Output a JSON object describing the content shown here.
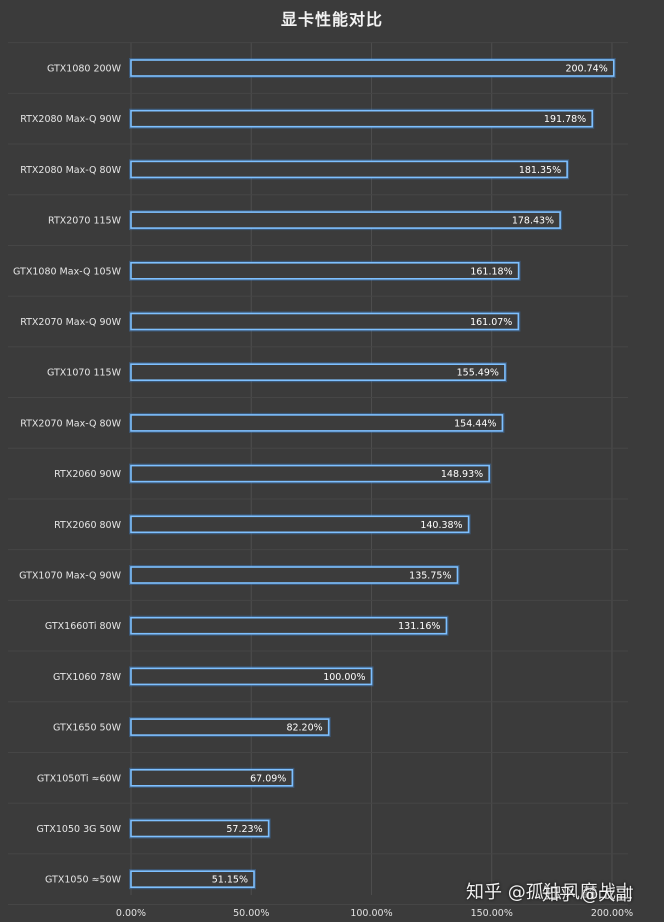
{
  "chart_data": {
    "type": "bar",
    "orientation": "horizontal",
    "title": "显卡性能对比",
    "categories": [
      "GTX1080 200W",
      "RTX2080 Max-Q 90W",
      "RTX2080 Max-Q 80W",
      "RTX2070 115W",
      "GTX1080 Max-Q 105W",
      "RTX2070 Max-Q 90W",
      "GTX1070 115W",
      "RTX2070 Max-Q 80W",
      "RTX2060 90W",
      "RTX2060 80W",
      "GTX1070 Max-Q 90W",
      "GTX1660Ti 80W",
      "GTX1060  78W",
      "GTX1650 50W",
      "GTX1050Ti ≈60W",
      "GTX1050 3G  50W",
      "GTX1050 ≈50W"
    ],
    "values": [
      200.74,
      191.78,
      181.35,
      178.43,
      161.18,
      161.07,
      155.49,
      154.44,
      148.93,
      140.38,
      135.75,
      131.16,
      100.0,
      82.2,
      67.09,
      57.23,
      51.15
    ],
    "value_labels": [
      "200.74%",
      "191.78%",
      "181.35%",
      "178.43%",
      "161.18%",
      "161.07%",
      "155.49%",
      "154.44%",
      "148.93%",
      "140.38%",
      "135.75%",
      "131.16%",
      "100.00%",
      "82.20%",
      "67.09%",
      "57.23%",
      "51.15%"
    ],
    "x_ticks": [
      "0.00%",
      "50.00%",
      "100.00%",
      "150.00%",
      "200.00%"
    ],
    "x_tick_values": [
      0,
      50,
      100,
      150,
      200
    ],
    "xlim": [
      0,
      205
    ],
    "grid": true,
    "legend": "none",
    "colors": {
      "background": "#3b3b3b",
      "bar_outline": "#7ec0ff",
      "bar_glow": "#3f8fe8",
      "text": "#e6e6e6"
    }
  },
  "watermark": {
    "line1": "知乎 @孤独风靡战士",
    "line2": "知乎 @大副"
  }
}
